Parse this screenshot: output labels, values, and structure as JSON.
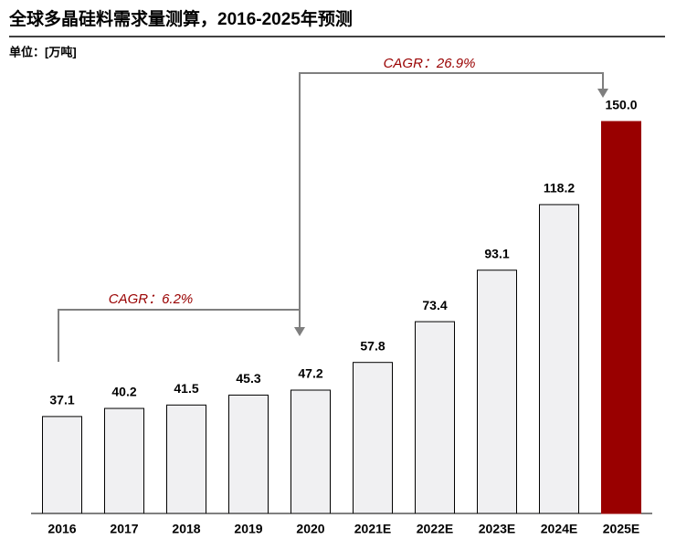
{
  "chart_data": {
    "type": "bar",
    "title": "全球多晶硅料需求量测算，2016-2025年预测",
    "subtitle": "单位：[万吨]",
    "categories": [
      "2016",
      "2017",
      "2018",
      "2019",
      "2020",
      "2021E",
      "2022E",
      "2023E",
      "2024E",
      "2025E"
    ],
    "values": [
      37.1,
      40.2,
      41.5,
      45.3,
      47.2,
      57.8,
      73.4,
      93.1,
      118.2,
      150.0
    ],
    "value_labels": [
      "37.1",
      "40.2",
      "41.5",
      "45.3",
      "47.2",
      "57.8",
      "73.4",
      "93.1",
      "118.2",
      "150.0"
    ],
    "colors": [
      "#f0f0f2",
      "#f0f0f2",
      "#f0f0f2",
      "#f0f0f2",
      "#f0f0f2",
      "#f0f0f2",
      "#f0f0f2",
      "#f0f0f2",
      "#f0f0f2",
      "#990000"
    ],
    "annotations": [
      "CAGR：6.2%",
      "CAGR：26.9%"
    ]
  }
}
